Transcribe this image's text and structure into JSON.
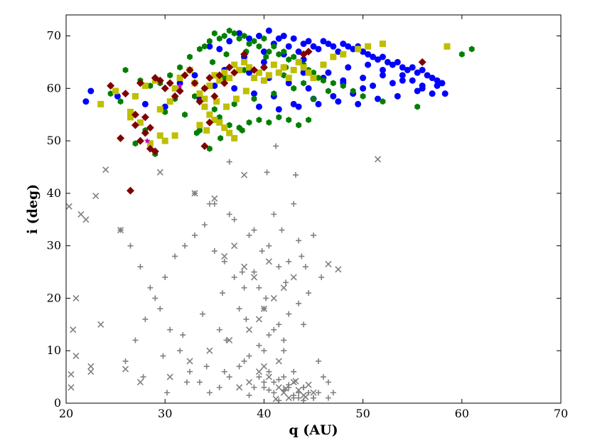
{
  "chart_data": {
    "type": "scatter",
    "xlabel": "q (AU)",
    "ylabel": "i (deg)",
    "xlim": [
      20,
      70
    ],
    "ylim": [
      0,
      74
    ],
    "xticks": [
      20,
      30,
      40,
      50,
      60,
      70
    ],
    "yticks": [
      0,
      10,
      20,
      30,
      40,
      50,
      60,
      70
    ],
    "grid": false,
    "legend": "none",
    "colors": {
      "blue": "#0000ff",
      "green": "#007f00",
      "yellow": "#bfbf00",
      "darkred": "#800000",
      "magenta": "#bf00bf",
      "gray": "#808080"
    },
    "series": [
      {
        "marker": "circle",
        "color": "#0000ff",
        "x": [
          22.0,
          22.5,
          25.2,
          28.0,
          30.0,
          31.5,
          33.0,
          34.5,
          35.5,
          36.5,
          37.5,
          38.5,
          39.5,
          40.5,
          41.0,
          41.5,
          42.0,
          42.5,
          43.0,
          43.5,
          44.0,
          44.5,
          45.0,
          45.5,
          46.0,
          46.5,
          47.0,
          47.5,
          48.0,
          48.5,
          49.0,
          49.5,
          50.0,
          50.5,
          51.0,
          51.5,
          52.0,
          52.5,
          53.0,
          53.5,
          54.0,
          54.5,
          55.0,
          55.5,
          56.0,
          56.5,
          57.0,
          57.5,
          58.0,
          58.3,
          50.0,
          48.0,
          46.0,
          44.0,
          42.0,
          40.0,
          38.0,
          47.0,
          49.0,
          51.0,
          53.0,
          55.0,
          57.0,
          45.0,
          43.0,
          41.0,
          39.0,
          37.0,
          36.0,
          52.0,
          54.0,
          56.0,
          46.5,
          48.5,
          50.5,
          44.5,
          42.5,
          40.5,
          38.5,
          33.5,
          35.0,
          39.5,
          41.5,
          43.5,
          45.5,
          47.5,
          49.5,
          51.5,
          53.5,
          55.5,
          50.0,
          48.0,
          46.0,
          44.0,
          42.0,
          40.0,
          52.0,
          54.0,
          56.0,
          57.5
        ],
        "y": [
          57.5,
          59.5,
          58.5,
          57.0,
          56.5,
          61.0,
          62.5,
          68.0,
          67.5,
          69.0,
          70.5,
          69.5,
          70.0,
          71.0,
          68.5,
          69.5,
          70.0,
          68.0,
          69.5,
          67.0,
          68.5,
          69.0,
          68.0,
          67.5,
          69.0,
          68.5,
          68.0,
          67.0,
          68.5,
          68.0,
          67.5,
          68.0,
          67.0,
          66.5,
          66.0,
          65.5,
          66.0,
          65.0,
          64.5,
          65.0,
          64.0,
          63.5,
          64.0,
          63.0,
          63.5,
          62.5,
          62.0,
          61.5,
          61.0,
          59.0,
          60.0,
          61.0,
          62.0,
          63.0,
          64.0,
          65.0,
          66.0,
          58.5,
          59.0,
          60.5,
          61.0,
          61.5,
          59.0,
          58.0,
          57.0,
          58.5,
          59.0,
          60.0,
          63.5,
          62.5,
          61.5,
          60.5,
          63.0,
          64.0,
          64.5,
          60.0,
          61.0,
          62.0,
          63.0,
          58.0,
          60.5,
          56.5,
          56.0,
          56.5,
          57.0,
          57.5,
          57.0,
          58.0,
          58.5,
          59.5,
          62.0,
          61.5,
          64.5,
          65.5,
          66.5,
          67.0,
          63.5,
          62.5,
          60.0,
          60.5
        ]
      },
      {
        "marker": "hexagon",
        "color": "#007f00",
        "x": [
          24.5,
          26.0,
          27.5,
          28.5,
          29.5,
          30.5,
          31.5,
          32.5,
          33.5,
          34.0,
          34.5,
          35.0,
          35.5,
          36.0,
          36.5,
          37.0,
          37.5,
          38.0,
          38.5,
          39.0,
          39.5,
          40.0,
          40.5,
          41.0,
          41.5,
          42.0,
          42.5,
          43.0,
          43.5,
          44.0,
          44.5,
          45.0,
          45.5,
          46.0,
          47.0,
          48.0,
          49.0,
          50.0,
          52.0,
          55.5,
          60.0,
          61.0,
          34.5,
          33.5,
          32.0,
          31.0,
          30.0,
          35.5,
          36.5,
          37.5,
          38.5,
          39.5,
          40.5,
          41.5,
          42.5,
          43.5,
          44.5,
          34.0,
          33.0,
          36.0,
          38.0,
          40.0,
          42.0,
          44.0,
          46.5,
          35.0,
          37.0,
          39.0,
          41.0,
          43.0,
          45.0,
          34.8,
          36.2,
          38.2,
          40.2,
          42.2,
          29.0,
          28.0,
          26.8,
          25.5,
          27.0,
          33.2,
          35.6,
          37.8
        ],
        "y": [
          59.0,
          63.5,
          61.5,
          60.5,
          61.0,
          62.5,
          64.0,
          66.0,
          67.5,
          68.0,
          69.0,
          70.5,
          69.5,
          70.0,
          71.0,
          70.5,
          69.5,
          70.0,
          68.5,
          69.0,
          68.0,
          69.5,
          67.0,
          68.0,
          66.5,
          67.0,
          65.5,
          66.0,
          65.0,
          64.5,
          63.5,
          63.0,
          62.0,
          61.5,
          61.0,
          60.5,
          59.5,
          58.5,
          57.5,
          56.5,
          66.5,
          67.5,
          48.5,
          52.0,
          55.0,
          58.0,
          55.5,
          54.5,
          53.0,
          52.5,
          53.5,
          54.0,
          53.5,
          54.5,
          54.0,
          53.0,
          54.0,
          60.0,
          58.5,
          62.0,
          63.5,
          64.0,
          62.5,
          61.0,
          59.5,
          56.0,
          57.0,
          58.0,
          59.0,
          60.0,
          58.0,
          65.0,
          66.5,
          67.0,
          66.0,
          64.0,
          47.5,
          52.0,
          55.0,
          57.5,
          49.5,
          51.5,
          50.5,
          52.0
        ]
      },
      {
        "marker": "square",
        "color": "#bfbf00",
        "x": [
          23.5,
          25.0,
          26.5,
          27.0,
          28.0,
          29.0,
          29.5,
          30.5,
          31.0,
          31.5,
          32.5,
          33.0,
          33.5,
          34.0,
          34.5,
          35.0,
          35.5,
          36.0,
          36.5,
          37.0,
          37.5,
          38.0,
          38.5,
          39.0,
          39.5,
          40.0,
          40.5,
          41.0,
          41.5,
          42.0,
          42.5,
          43.0,
          43.5,
          44.0,
          44.5,
          45.0,
          46.0,
          47.0,
          48.0,
          49.5,
          50.5,
          52.0,
          58.5,
          34.0,
          34.5,
          35.0,
          35.5,
          36.0,
          36.5,
          37.0,
          34.2,
          33.5,
          29.5,
          28.5,
          27.5,
          26.5,
          35.2,
          36.2,
          37.2,
          38.2,
          30.0,
          31.0
        ],
        "y": [
          57.0,
          59.5,
          55.5,
          58.5,
          60.5,
          61.5,
          56.0,
          57.5,
          60.0,
          62.0,
          63.5,
          61.0,
          59.0,
          58.0,
          60.5,
          62.5,
          61.5,
          63.0,
          62.0,
          64.5,
          63.5,
          65.0,
          64.0,
          62.0,
          63.0,
          61.5,
          62.5,
          64.5,
          63.0,
          64.0,
          62.0,
          63.5,
          65.0,
          64.0,
          63.0,
          62.0,
          64.5,
          66.0,
          66.5,
          67.5,
          68.0,
          68.5,
          68.0,
          56.5,
          55.0,
          54.0,
          53.5,
          52.5,
          51.5,
          50.5,
          52.0,
          53.0,
          51.0,
          49.5,
          53.5,
          54.5,
          57.5,
          56.5,
          58.0,
          59.5,
          50.0,
          51.0
        ]
      },
      {
        "marker": "diamond",
        "color": "#800000",
        "x": [
          24.5,
          25.5,
          26.0,
          26.5,
          27.0,
          27.5,
          28.0,
          28.5,
          29.0,
          29.5,
          30.0,
          30.5,
          31.0,
          31.5,
          32.0,
          32.5,
          33.0,
          33.5,
          34.0,
          34.5,
          35.0,
          35.5,
          36.0,
          36.5,
          37.0,
          38.0,
          39.0,
          40.0,
          44.0,
          44.5,
          56.0,
          27.5,
          28.0,
          28.5,
          29.0,
          27.0,
          34.5,
          34.0
        ],
        "y": [
          60.5,
          50.5,
          59.0,
          40.5,
          53.0,
          61.0,
          51.5,
          48.5,
          62.0,
          61.5,
          60.0,
          61.0,
          58.5,
          59.5,
          62.5,
          63.5,
          61.0,
          57.5,
          60.0,
          62.0,
          58.5,
          62.5,
          61.0,
          64.0,
          63.0,
          66.5,
          63.5,
          64.0,
          66.5,
          67.0,
          65.0,
          50.0,
          54.5,
          52.5,
          48.0,
          55.0,
          53.5,
          49.0
        ]
      },
      {
        "marker": "star",
        "color": "#bf00bf",
        "x": [
          28.2,
          31.5
        ],
        "y": [
          50.0,
          60.5
        ]
      },
      {
        "marker": "plus",
        "color": "#808080",
        "x": [
          25.5,
          26.5,
          27.5,
          28.5,
          29.5,
          30.5,
          31.5,
          32.5,
          33.5,
          34.5,
          35.5,
          36.5,
          37.5,
          38.5,
          39.5,
          40.5,
          41.5,
          42.5,
          43.5,
          44.5,
          45.5,
          46.5,
          47.0,
          26.0,
          27.0,
          28.0,
          29.0,
          30.0,
          31.0,
          32.0,
          33.0,
          34.0,
          35.0,
          36.0,
          37.0,
          38.0,
          39.0,
          40.0,
          41.0,
          42.0,
          43.0,
          44.0,
          45.0,
          46.0,
          27.8,
          29.8,
          31.8,
          33.8,
          35.8,
          37.8,
          39.8,
          41.8,
          43.8,
          45.8,
          30.2,
          32.2,
          34.2,
          36.2,
          38.2,
          40.2,
          42.2,
          44.2,
          34.5,
          36.5,
          38.5,
          40.5,
          42.5,
          35.5,
          37.5,
          39.5,
          41.5,
          43.5,
          33.0,
          35.0,
          37.0,
          39.0,
          41.0,
          43.0,
          45.0,
          36.0,
          38.0,
          40.0,
          42.0,
          44.0,
          39.0,
          41.0,
          43.0,
          40.0,
          42.0,
          44.0,
          38.5,
          40.5,
          42.5,
          44.5,
          46.5,
          41.5,
          43.5,
          45.5,
          40.0,
          41.0,
          42.0,
          43.0,
          44.0,
          45.0,
          39.5,
          40.5,
          41.5,
          42.5,
          43.5,
          36.5,
          41.2,
          43.2,
          40.3
        ],
        "y": [
          33.0,
          30.0,
          26.0,
          22.0,
          18.0,
          14.0,
          10.0,
          6.0,
          4.0,
          2.0,
          3.0,
          5.0,
          7.0,
          9.0,
          11.0,
          13.0,
          15.0,
          17.0,
          19.0,
          21.0,
          8.0,
          4.0,
          2.0,
          8.0,
          12.0,
          16.0,
          20.0,
          24.0,
          28.0,
          30.0,
          32.0,
          34.0,
          29.0,
          27.0,
          24.0,
          22.0,
          25.0,
          18.0,
          14.0,
          10.0,
          6.0,
          3.0,
          1.0,
          5.0,
          5.0,
          9.0,
          13.0,
          17.0,
          21.0,
          25.0,
          29.0,
          33.0,
          28.0,
          24.0,
          2.0,
          4.0,
          7.0,
          12.0,
          16.0,
          20.0,
          23.0,
          26.0,
          38.0,
          36.0,
          32.0,
          30.0,
          27.0,
          14.0,
          18.0,
          22.0,
          26.0,
          31.0,
          40.0,
          38.0,
          35.0,
          33.0,
          36.0,
          38.0,
          32.0,
          6.0,
          8.0,
          10.0,
          12.0,
          15.0,
          3.0,
          2.0,
          1.0,
          4.0,
          5.0,
          3.0,
          1.5,
          2.5,
          3.5,
          2.0,
          1.0,
          0.5,
          1.0,
          2.0,
          3.0,
          4.0,
          2.5,
          1.5,
          0.5,
          1.0,
          5.0,
          6.0,
          4.5,
          3.0,
          2.0,
          46.0,
          49.0,
          43.5,
          44.0
        ]
      },
      {
        "marker": "x",
        "color": "#808080",
        "x": [
          20.3,
          20.5,
          20.7,
          21.0,
          21.5,
          22.0,
          22.5,
          23.0,
          23.5,
          24.0,
          25.5,
          29.5,
          33.0,
          35.0,
          38.0,
          40.5,
          41.5,
          42.0,
          42.5,
          43.0,
          43.5,
          44.0,
          44.5,
          45.0,
          46.5,
          47.5,
          51.5,
          20.5,
          21.0,
          22.5,
          26.0,
          27.5,
          30.5,
          32.5,
          34.5,
          36.5,
          38.5,
          39.5,
          40.0,
          41.0,
          42.0,
          43.0,
          36.0,
          37.0,
          38.0,
          39.0,
          40.5,
          39.5,
          41.5,
          37.5,
          38.5,
          40.0,
          41.2,
          42.2,
          43.2,
          44.2
        ],
        "y": [
          37.5,
          3.0,
          14.0,
          20.0,
          36.0,
          35.0,
          7.0,
          39.5,
          15.0,
          44.5,
          33.0,
          44.0,
          40.0,
          39.0,
          43.5,
          5.0,
          3.0,
          2.0,
          1.0,
          4.0,
          2.5,
          1.5,
          3.5,
          2.0,
          26.5,
          25.5,
          46.5,
          5.5,
          9.0,
          6.0,
          6.5,
          4.0,
          5.0,
          8.0,
          10.0,
          12.0,
          14.0,
          16.0,
          18.0,
          20.0,
          22.0,
          24.0,
          28.0,
          30.0,
          26.0,
          24.0,
          27.0,
          6.0,
          8.0,
          3.0,
          4.0,
          7.0,
          0.8,
          2.8,
          4.2,
          1.2
        ]
      }
    ]
  }
}
